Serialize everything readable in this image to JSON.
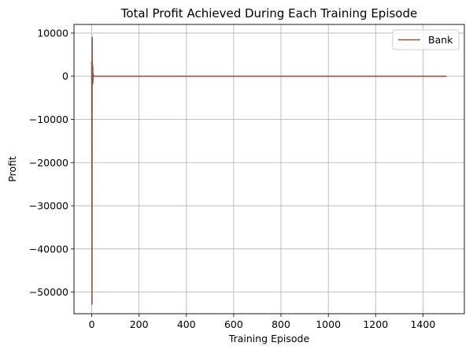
{
  "chart_data": {
    "type": "line",
    "title": "Total Profit Achieved During Each Training Episode",
    "xlabel": "Training Episode",
    "ylabel": "Profit",
    "xlim": [
      -75,
      1575
    ],
    "ylim": [
      -55000,
      12000
    ],
    "xticks": [
      0,
      200,
      400,
      600,
      800,
      1000,
      1200,
      1400
    ],
    "yticks": [
      10000,
      0,
      -10000,
      -20000,
      -30000,
      -40000,
      -50000
    ],
    "xtick_labels": [
      "0",
      "200",
      "400",
      "600",
      "800",
      "1000",
      "1200",
      "1400"
    ],
    "ytick_labels": [
      "10000",
      "0",
      "−10000",
      "−20000",
      "−30000",
      "−40000",
      "−50000"
    ],
    "grid": true,
    "legend_position": "top-right",
    "series": [
      {
        "name": "Bank",
        "color": "#8c564b",
        "x": [
          0,
          1,
          2,
          3,
          4,
          5,
          6,
          8,
          10,
          15,
          20,
          50,
          100,
          300,
          600,
          900,
          1200,
          1500
        ],
        "y": [
          3500,
          -52800,
          9000,
          -2000,
          2500,
          -1500,
          500,
          0,
          0,
          0,
          0,
          0,
          0,
          0,
          0,
          0,
          0,
          0
        ]
      }
    ]
  }
}
